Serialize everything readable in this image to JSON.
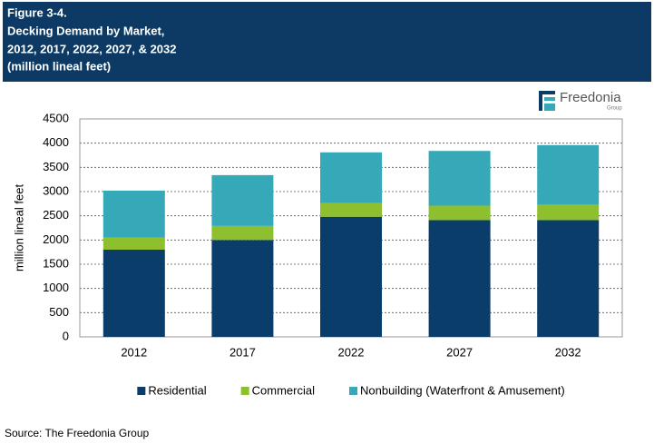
{
  "chart_data": {
    "type": "stacked_bar",
    "title": [
      "Figure 3-4.",
      "Decking Demand by Market,",
      "2012, 2017, 2022, 2027, & 2032",
      "(million lineal feet)"
    ],
    "ylabel": "million lineal feet",
    "categories": [
      "2012",
      "2017",
      "2022",
      "2027",
      "2032"
    ],
    "series": [
      {
        "name": "Residential",
        "color": "#0b3d6b",
        "values": [
          1800,
          2000,
          2480,
          2410,
          2410
        ]
      },
      {
        "name": "Commercial",
        "color": "#8dbf2e",
        "values": [
          250,
          290,
          280,
          300,
          320
        ]
      },
      {
        "name": "Nonbuilding (Waterfront & Amusement)",
        "color": "#35a9b8",
        "values": [
          970,
          1050,
          1050,
          1130,
          1230
        ]
      }
    ],
    "ylim": [
      0,
      4500
    ],
    "yticks": [
      0,
      500,
      1000,
      1500,
      2000,
      2500,
      3000,
      3500,
      4000,
      4500
    ],
    "grid": true,
    "legend": "bottom"
  },
  "logo": {
    "name": "Freedonia",
    "sub": "Group"
  },
  "source": "Source: The Freedonia Group"
}
